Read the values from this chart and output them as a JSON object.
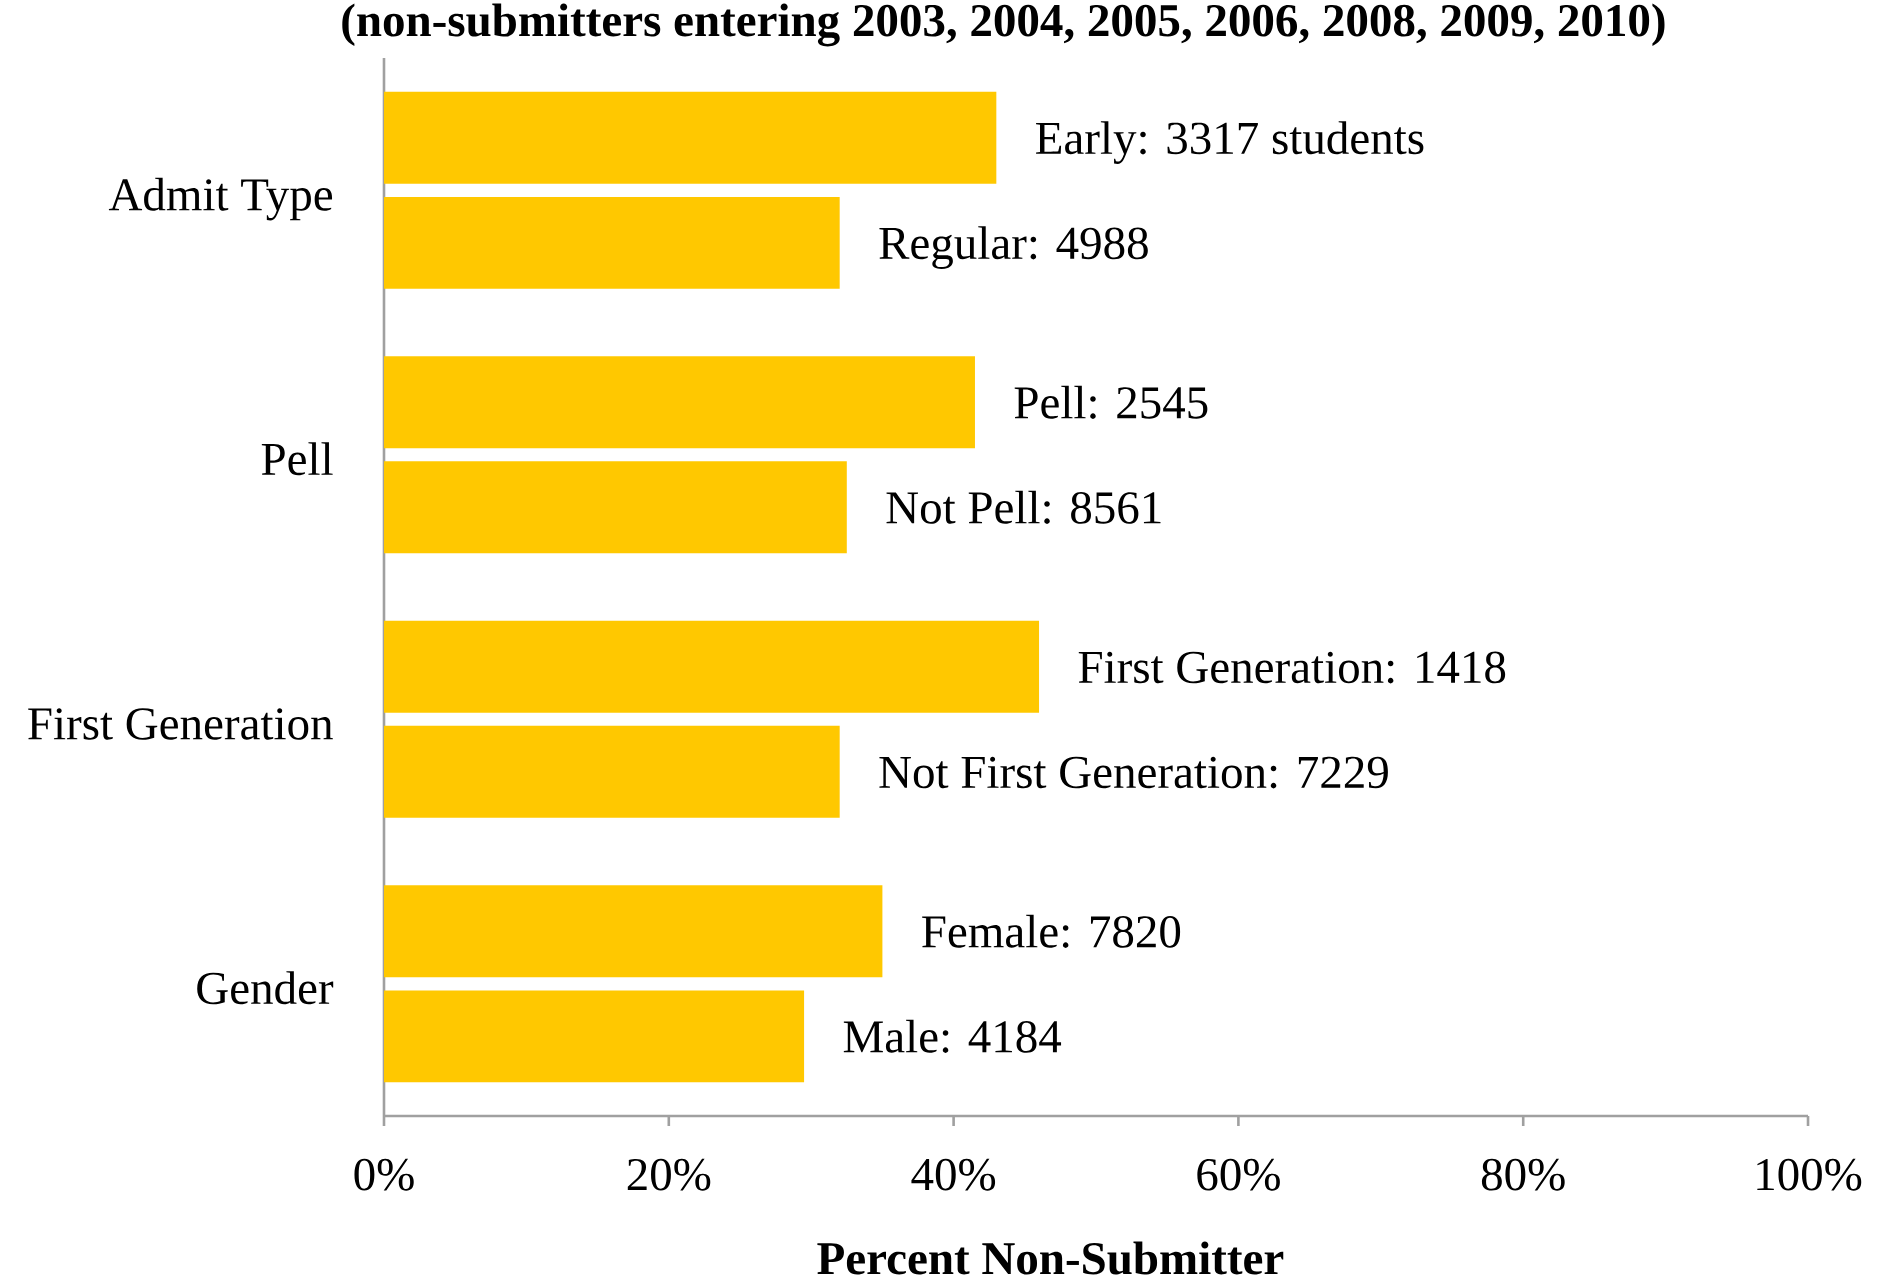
{
  "chart_data": {
    "type": "bar",
    "orientation": "horizontal",
    "title": "(non-submitters entering 2003, 2004, 2005, 2006, 2008, 2009, 2010)",
    "xlabel": "Percent Non-Submitter",
    "categories": [
      "Admit Type",
      "Pell",
      "First Generation",
      "Gender"
    ],
    "series": [
      {
        "color": "#ffc800",
        "values": [
          43,
          41.5,
          46,
          35
        ]
      },
      {
        "color": "#ffc800",
        "values": [
          32,
          32.5,
          32,
          29.5
        ]
      }
    ],
    "annotations": [
      "Early: 3317 students",
      "Regular: 4988",
      "Pell: 2545",
      "Not Pell: 8561",
      "First Generation: 1418",
      "Not First Generation: 7229",
      "Female: 7820",
      "Male: 4184"
    ],
    "xlim": [
      0,
      100
    ],
    "xticks": [
      {
        "value": 0,
        "label": "0%"
      },
      {
        "value": 20,
        "label": "20%"
      },
      {
        "value": 40,
        "label": "40%"
      },
      {
        "value": 60,
        "label": "60%"
      },
      {
        "value": 80,
        "label": "80%"
      },
      {
        "value": 100,
        "label": "100%"
      }
    ]
  }
}
